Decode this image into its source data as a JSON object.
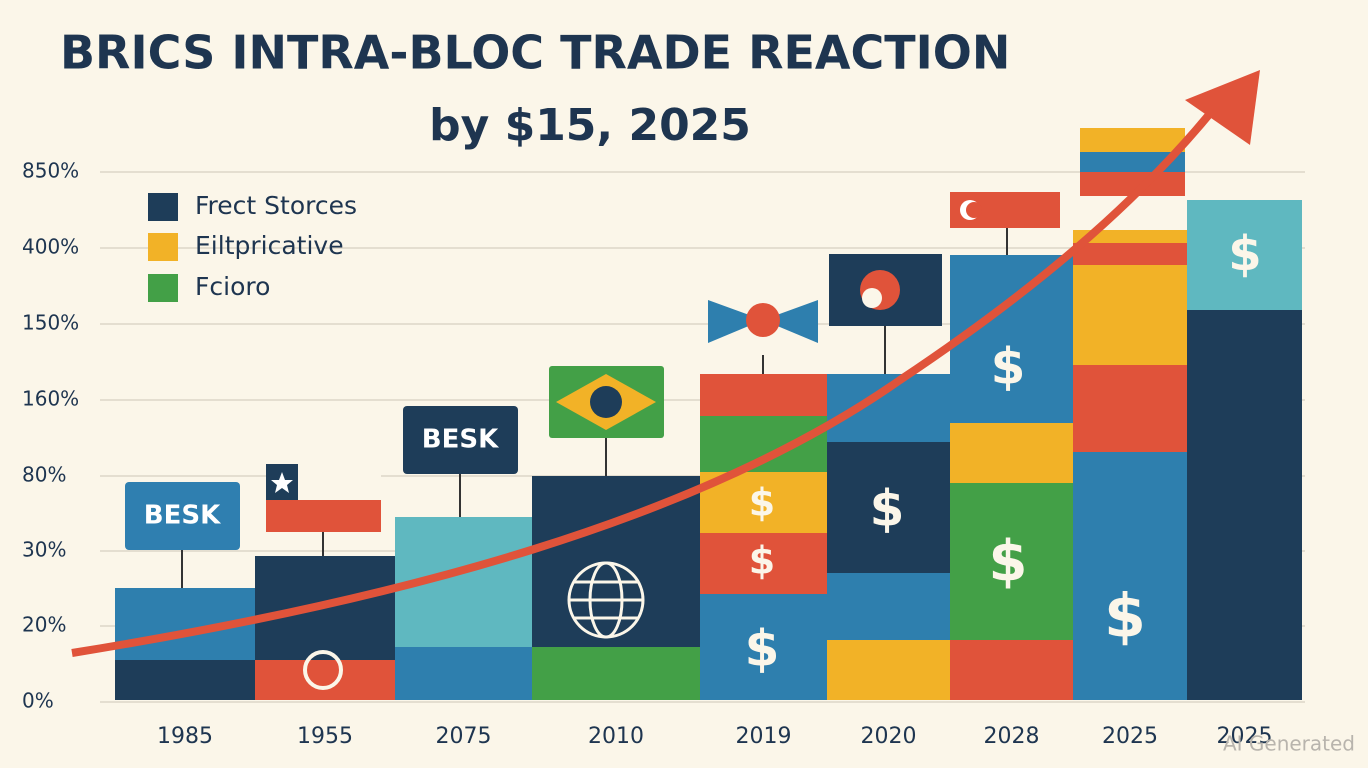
{
  "title": "BRICS INTRA-BLOC TRADE REACTION",
  "subtitle": "by $15, 2025",
  "y_axis_labels": [
    "850%",
    "400%",
    "150%",
    "160%",
    "80%",
    "30%",
    "20%",
    "0%"
  ],
  "x_axis_labels": [
    "1985",
    "1955",
    "2075",
    "2010",
    "2019",
    "2020",
    "2028",
    "2025",
    "2025"
  ],
  "legend": [
    {
      "label": "Frect Storces",
      "color": "#1e3d59"
    },
    {
      "label": "Eiltpricative",
      "color": "#f2b227"
    },
    {
      "label": "Fcioro",
      "color": "#43a047"
    }
  ],
  "callouts": [
    "BESK",
    "BESK"
  ],
  "currency_symbol": "$",
  "watermark": "AI Generated"
}
